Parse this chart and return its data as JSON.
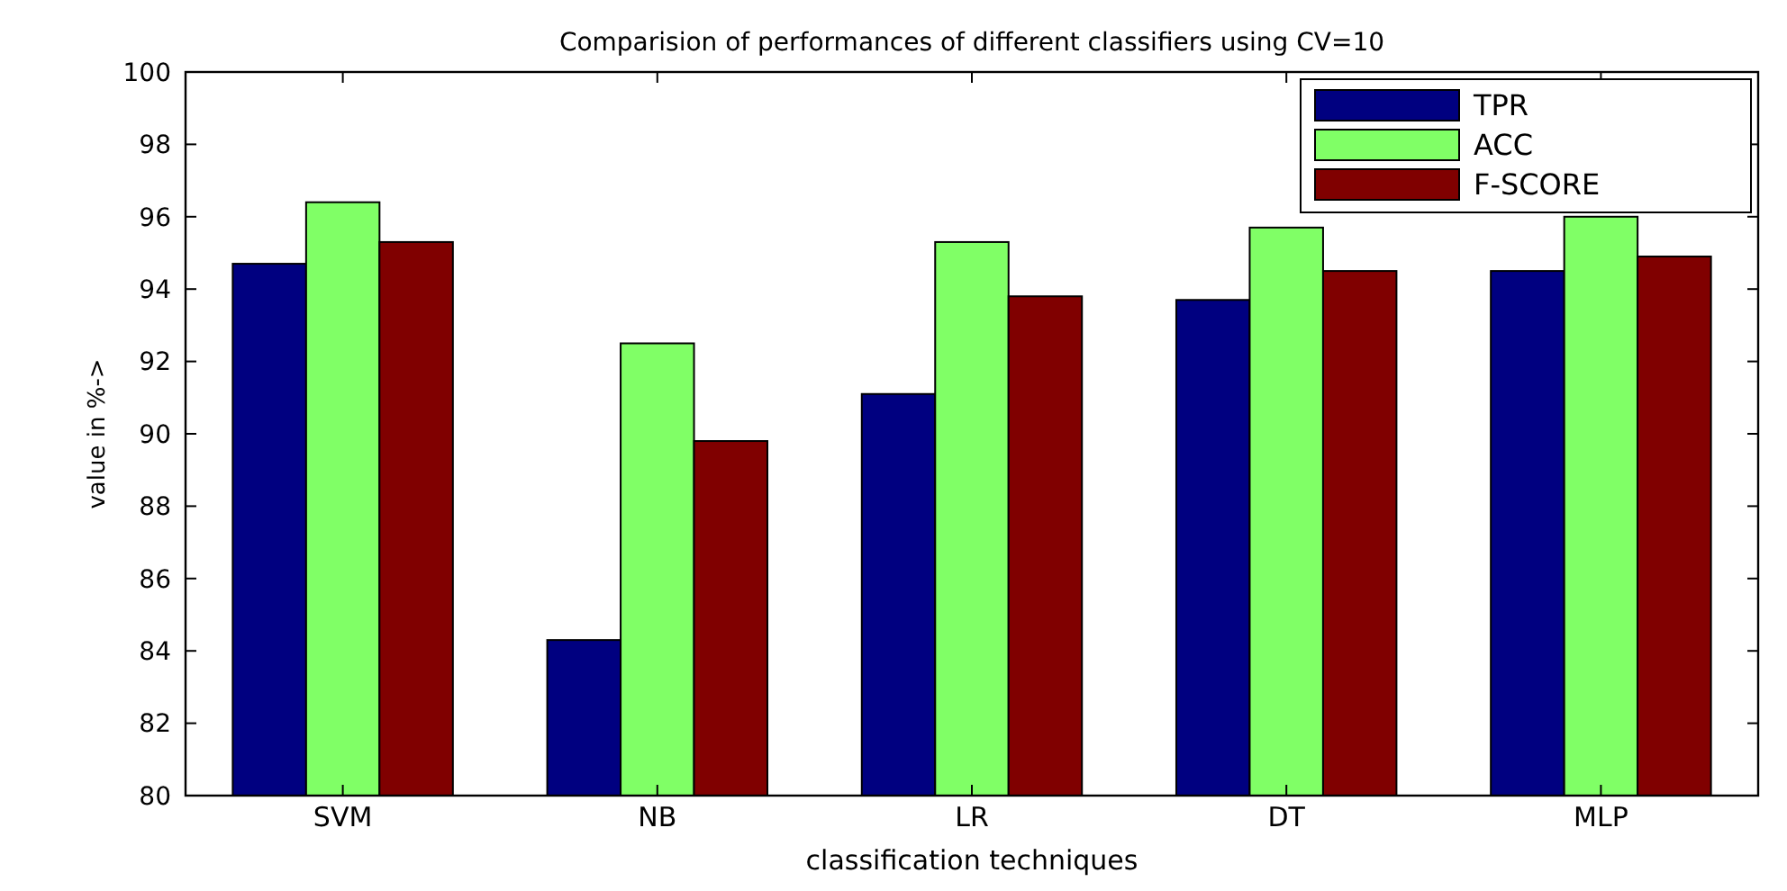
{
  "chart_data": {
    "type": "bar",
    "title": "Comparision of performances of different classifiers using CV=10",
    "xlabel": "classification techniques",
    "ylabel": "value in %->",
    "categories": [
      "SVM",
      "NB",
      "LR",
      "DT",
      "MLP"
    ],
    "series": [
      {
        "name": "TPR",
        "color": "#000080",
        "values": [
          94.7,
          84.3,
          91.1,
          93.7,
          94.5
        ]
      },
      {
        "name": "ACC",
        "color": "#80ff66",
        "values": [
          96.4,
          92.5,
          95.3,
          95.7,
          96.0
        ]
      },
      {
        "name": "F-SCORE",
        "color": "#800000",
        "values": [
          95.3,
          89.8,
          93.8,
          94.5,
          94.9
        ]
      }
    ],
    "ylim": [
      80,
      100
    ],
    "yticks": [
      80,
      82,
      84,
      86,
      88,
      90,
      92,
      94,
      96,
      98,
      100
    ],
    "grid": false,
    "legend": "top right"
  }
}
